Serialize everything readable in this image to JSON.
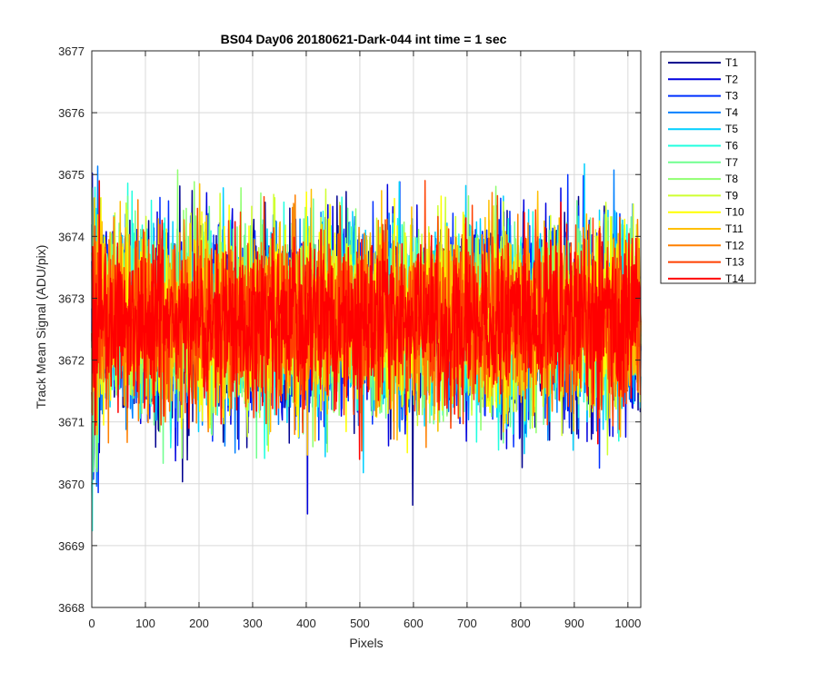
{
  "chart_data": {
    "type": "line",
    "title": "BS04 Day06 20180621-Dark-044 int time = 1 sec",
    "xlabel": "Pixels",
    "ylabel": "Track Mean Signal (ADU/pix)",
    "xlim": [
      0,
      1024
    ],
    "ylim": [
      3668,
      3677
    ],
    "xticks": [
      0,
      100,
      200,
      300,
      400,
      500,
      600,
      700,
      800,
      900,
      1000
    ],
    "yticks": [
      3668,
      3669,
      3670,
      3671,
      3672,
      3673,
      3674,
      3675,
      3676,
      3677
    ],
    "grid": true,
    "legend_position": "outside-top-right",
    "n_points_per_series": 1024,
    "series_center": 3672.5,
    "series_min_approx": 3668.65,
    "series_max_approx": 3676.25,
    "series": [
      {
        "name": "T1",
        "color": "#00008F"
      },
      {
        "name": "T2",
        "color": "#0000DF"
      },
      {
        "name": "T3",
        "color": "#0030FF"
      },
      {
        "name": "T4",
        "color": "#0080FF"
      },
      {
        "name": "T5",
        "color": "#00CFFF"
      },
      {
        "name": "T6",
        "color": "#20FFDF"
      },
      {
        "name": "T7",
        "color": "#70FF8F"
      },
      {
        "name": "T8",
        "color": "#8FFF70"
      },
      {
        "name": "T9",
        "color": "#CFFF30"
      },
      {
        "name": "T10",
        "color": "#FFFF00"
      },
      {
        "name": "T11",
        "color": "#FFBF00"
      },
      {
        "name": "T12",
        "color": "#FF8000"
      },
      {
        "name": "T13",
        "color": "#FF4000"
      },
      {
        "name": "T14",
        "color": "#FF0000"
      }
    ]
  }
}
